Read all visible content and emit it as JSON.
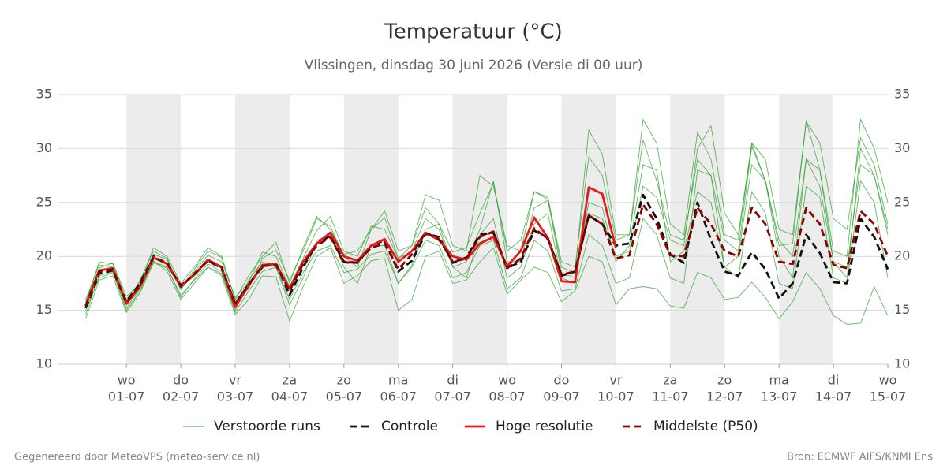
{
  "chart_data": {
    "type": "line",
    "title": "Temperatuur (°C)",
    "subtitle": "Vlissingen, dinsdag 30 juni 2026 (Versie di 00 uur)",
    "categories": [
      null,
      null,
      null,
      {
        "day": "wo",
        "date": "01-07"
      },
      null,
      null,
      null,
      {
        "day": "do",
        "date": "02-07"
      },
      null,
      null,
      null,
      {
        "day": "vr",
        "date": "03-07"
      },
      null,
      null,
      null,
      {
        "day": "za",
        "date": "04-07"
      },
      null,
      null,
      null,
      {
        "day": "zo",
        "date": "05-07"
      },
      null,
      null,
      null,
      {
        "day": "ma",
        "date": "06-07"
      },
      null,
      null,
      null,
      {
        "day": "di",
        "date": "07-07"
      },
      null,
      null,
      null,
      {
        "day": "wo",
        "date": "08-07"
      },
      null,
      null,
      null,
      {
        "day": "do",
        "date": "09-07"
      },
      null,
      null,
      null,
      {
        "day": "vr",
        "date": "10-07"
      },
      null,
      null,
      null,
      {
        "day": "za",
        "date": "11-07"
      },
      null,
      null,
      null,
      {
        "day": "zo",
        "date": "12-07"
      },
      null,
      null,
      null,
      {
        "day": "ma",
        "date": "13-07"
      },
      null,
      null,
      null,
      {
        "day": "di",
        "date": "14-07"
      },
      null,
      null,
      null,
      {
        "day": "wo",
        "date": "15-07"
      }
    ],
    "xlim": [
      -2,
      59
    ],
    "ylim": [
      10,
      35
    ],
    "yticks": [
      10,
      15,
      20,
      25,
      30,
      35
    ],
    "grid": true,
    "series": [
      {
        "name": "Verstoorde runs",
        "color": "#2ca02c",
        "members": [
          [
            16.0,
            19.2,
            19.0,
            15.5,
            17.8,
            20.5,
            19.8,
            17.0,
            18.8,
            20.5,
            19.9,
            16.0,
            17.0,
            19.8,
            20.6,
            17.8,
            20.5,
            23.5,
            22.8,
            20.0,
            19.0,
            22.5,
            23.6,
            19.8,
            21.0,
            24.5,
            23.0,
            20.4,
            20.8,
            24.0,
            26.8,
            20.5,
            21.5,
            26.0,
            25.3,
            19.5,
            19.0,
            29.2,
            27.5,
            21.5,
            22.0,
            30.8,
            27.0,
            22.0,
            21.5,
            29.0,
            27.5,
            21.5,
            20.5,
            30.2,
            27.0,
            21.0,
            21.2,
            32.6,
            28.0,
            20.5,
            20.0,
            32.7,
            30.0,
            25.0
          ],
          [
            14.2,
            17.8,
            18.2,
            14.8,
            16.6,
            19.4,
            18.9,
            16.4,
            17.8,
            19.0,
            18.2,
            14.6,
            16.0,
            18.2,
            18.1,
            14.0,
            17.2,
            20.0,
            20.8,
            17.5,
            18.2,
            19.6,
            19.8,
            15.0,
            16.0,
            20.0,
            20.5,
            17.5,
            17.8,
            19.5,
            20.8,
            16.5,
            17.8,
            19.0,
            18.5,
            15.8,
            16.8,
            20.0,
            19.5,
            15.5,
            17.0,
            17.2,
            17.0,
            15.4,
            15.2,
            18.5,
            18.0,
            16.0,
            16.2,
            17.6,
            16.2,
            14.2,
            15.8,
            18.5,
            17.0,
            14.5,
            13.7,
            13.8,
            17.2,
            14.5
          ],
          [
            15.6,
            19.5,
            19.3,
            16.0,
            17.6,
            20.8,
            20.0,
            17.5,
            19.0,
            20.8,
            20.0,
            16.0,
            18.2,
            20.0,
            21.3,
            17.5,
            20.8,
            23.7,
            22.5,
            20.2,
            20.5,
            22.5,
            24.2,
            20.5,
            21.0,
            25.7,
            25.2,
            21.0,
            20.5,
            27.5,
            26.5,
            21.0,
            20.5,
            26.0,
            25.5,
            19.0,
            18.5,
            31.7,
            29.5,
            22.0,
            22.0,
            32.7,
            30.5,
            23.0,
            22.0,
            31.5,
            29.0,
            22.0,
            21.5,
            30.5,
            29.0,
            22.5,
            22.0,
            32.5,
            30.5,
            23.5,
            22.5,
            31.0,
            28.5,
            23.0
          ],
          [
            15.0,
            18.0,
            18.5,
            15.2,
            17.0,
            19.5,
            19.0,
            16.2,
            17.9,
            19.3,
            18.6,
            14.8,
            16.8,
            18.6,
            19.0,
            16.0,
            18.5,
            20.5,
            21.0,
            18.5,
            18.8,
            20.2,
            20.5,
            17.5,
            19.0,
            21.5,
            21.0,
            18.0,
            18.5,
            21.0,
            21.5,
            17.0,
            18.0,
            21.5,
            20.5,
            16.8,
            17.0,
            22.0,
            21.0,
            17.5,
            18.0,
            23.5,
            22.0,
            18.0,
            17.5,
            28.0,
            27.5,
            19.0,
            18.0,
            26.0,
            24.0,
            17.5,
            17.0,
            26.5,
            25.5,
            18.0,
            17.5,
            27.0,
            25.0,
            18.0
          ],
          [
            15.8,
            18.9,
            19.4,
            16.3,
            17.4,
            20.2,
            19.7,
            16.9,
            18.6,
            20.1,
            19.5,
            16.2,
            17.6,
            20.4,
            20.0,
            17.2,
            19.8,
            22.4,
            23.7,
            20.5,
            20.0,
            22.8,
            22.5,
            19.8,
            20.5,
            23.5,
            22.5,
            19.0,
            19.5,
            22.5,
            27.0,
            19.5,
            19.5,
            24.5,
            25.2,
            18.5,
            18.0,
            24.0,
            23.5,
            20.0,
            20.5,
            26.5,
            25.5,
            21.5,
            21.0,
            30.0,
            32.1,
            24.0,
            22.0,
            30.5,
            27.0,
            21.5,
            20.0,
            29.0,
            28.0,
            19.5,
            18.0,
            30.0,
            27.5,
            22.0
          ],
          [
            14.6,
            18.2,
            18.6,
            15.0,
            16.8,
            19.6,
            18.6,
            16.0,
            17.5,
            19.0,
            18.4,
            15.0,
            17.8,
            19.5,
            19.0,
            15.5,
            18.0,
            21.5,
            22.0,
            19.0,
            17.5,
            21.0,
            21.0,
            17.5,
            19.2,
            22.5,
            23.0,
            19.0,
            18.0,
            22.0,
            23.5,
            18.0,
            19.0,
            23.0,
            24.0,
            18.0,
            17.5,
            25.0,
            24.5,
            19.5,
            21.0,
            28.5,
            28.0,
            19.5,
            20.5,
            26.0,
            25.0,
            19.0,
            20.0,
            28.5,
            27.0,
            20.0,
            18.0,
            29.0,
            26.5,
            19.5,
            19.0,
            28.5,
            27.5,
            22.5
          ]
        ]
      },
      {
        "name": "Controle",
        "color": "#111111",
        "dash": true,
        "values": [
          15.2,
          18.4,
          18.7,
          15.8,
          17.5,
          20.0,
          19.3,
          17.3,
          18.3,
          19.6,
          18.9,
          15.6,
          17.4,
          19.0,
          19.4,
          16.4,
          19.0,
          21.2,
          21.9,
          19.5,
          19.4,
          21.0,
          21.5,
          18.6,
          19.6,
          22.1,
          21.8,
          19.4,
          19.9,
          22.0,
          22.2,
          18.9,
          19.5,
          22.4,
          21.7,
          18.2,
          18.6,
          23.8,
          23.0,
          21.0,
          21.2,
          25.7,
          23.5,
          20.2,
          19.4,
          25.0,
          21.5,
          18.6,
          18.2,
          20.4,
          18.8,
          16.1,
          17.5,
          22.0,
          20.3,
          17.6,
          17.5,
          23.5,
          21.8,
          18.8
        ]
      },
      {
        "name": "Hoge resolutie",
        "color": "#e31a1c",
        "values": [
          15.4,
          18.7,
          18.9,
          15.6,
          17.2,
          19.9,
          19.3,
          17.2,
          18.3,
          19.7,
          19.0,
          15.3,
          17.3,
          19.2,
          19.3,
          17.0,
          19.5,
          21.2,
          22.2,
          20.0,
          19.6,
          21.0,
          21.6,
          19.5,
          20.5,
          22.2,
          21.5,
          20.0,
          19.7,
          21.2,
          21.8,
          19.1,
          20.5,
          23.6,
          21.7,
          17.7,
          17.6,
          26.4,
          25.8,
          20.8,
          null,
          null,
          null,
          null,
          null,
          null,
          null,
          null,
          null,
          null,
          null,
          null,
          null,
          null,
          null,
          null,
          null,
          null,
          null,
          null
        ]
      },
      {
        "name": "Middelste (P50)",
        "color": "#8b0000",
        "dash": true,
        "values": [
          15.4,
          18.6,
          18.8,
          15.7,
          17.3,
          19.9,
          19.4,
          17.2,
          18.4,
          19.6,
          19.0,
          15.6,
          17.4,
          19.1,
          19.2,
          16.8,
          19.3,
          21.0,
          21.8,
          19.4,
          19.5,
          20.8,
          21.2,
          18.8,
          20.2,
          22.2,
          21.6,
          19.5,
          19.8,
          21.8,
          22.3,
          18.9,
          19.8,
          22.6,
          21.6,
          18.3,
          18.6,
          23.8,
          23.0,
          19.8,
          20.1,
          24.8,
          23.0,
          20.1,
          20.0,
          24.5,
          23.0,
          20.5,
          20.0,
          24.5,
          23.0,
          19.5,
          19.3,
          24.5,
          23.0,
          19.2,
          18.9,
          24.2,
          23.0,
          20.0
        ]
      }
    ],
    "footer_left": "Gegenereerd door MeteoVPS (meteo-service.nl)",
    "footer_right": "Bron: ECMWF AIFS/KNMI Ens"
  }
}
